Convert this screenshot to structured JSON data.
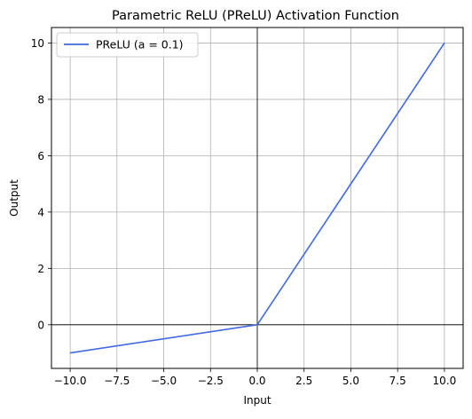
{
  "chart_data": {
    "type": "line",
    "title": "Parametric ReLU (PReLU) Activation Function",
    "xlabel": "Input",
    "ylabel": "Output",
    "xlim": [
      -11,
      11
    ],
    "ylim": [
      -1.55,
      10.55
    ],
    "xticks": [
      -10.0,
      -7.5,
      -5.0,
      -2.5,
      0.0,
      2.5,
      5.0,
      7.5,
      10.0
    ],
    "xtick_labels": [
      "−10.0",
      "−7.5",
      "−5.0",
      "−2.5",
      "0.0",
      "2.5",
      "5.0",
      "7.5",
      "10.0"
    ],
    "yticks": [
      0,
      2,
      4,
      6,
      8,
      10
    ],
    "ytick_labels": [
      "0",
      "2",
      "4",
      "6",
      "8",
      "10"
    ],
    "grid": true,
    "reference_lines": {
      "x": 0,
      "y": 0,
      "color": "#000000"
    },
    "legend": {
      "placement": "top-left"
    },
    "series": [
      {
        "name": "PReLU (a = 0.1)",
        "color": "#4169e1",
        "x": [
          -10,
          0,
          10
        ],
        "y": [
          -1,
          0,
          10
        ]
      }
    ]
  }
}
